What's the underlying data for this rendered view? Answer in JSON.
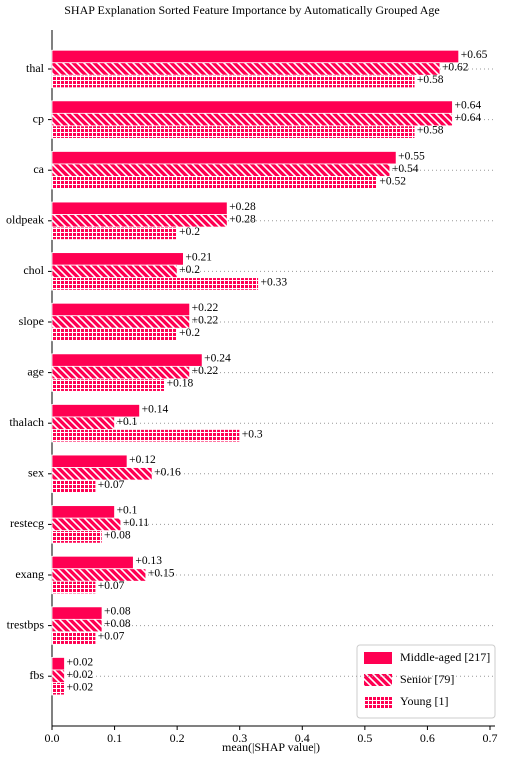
{
  "chart_data": {
    "type": "barh",
    "title": "SHAP Explanation Sorted Feature Importance by Automatically Grouped Age",
    "x_label": "mean(|SHAP value|)",
    "categories": [
      "thal",
      "cp",
      "ca",
      "oldpeak",
      "chol",
      "slope",
      "age",
      "thalach",
      "sex",
      "restecg",
      "exang",
      "trestbps",
      "fbs"
    ],
    "series": [
      {
        "name": "Middle-aged [217]",
        "color": "#ff0052",
        "values": [
          0.65,
          0.64,
          0.55,
          0.28,
          0.21,
          0.22,
          0.24,
          0.14,
          0.12,
          0.1,
          0.13,
          0.08,
          0.02
        ],
        "value_labels": [
          "+0.65",
          "+0.64",
          "+0.55",
          "+0.28",
          "+0.21",
          "+0.22",
          "+0.24",
          "+0.14",
          "+0.12",
          "+0.1",
          "+0.13",
          "+0.08",
          "+0.02"
        ]
      },
      {
        "name": "Senior [79]",
        "color": "#ff0052",
        "values": [
          0.62,
          0.64,
          0.54,
          0.28,
          0.2,
          0.22,
          0.22,
          0.1,
          0.16,
          0.11,
          0.15,
          0.08,
          0.02
        ],
        "value_labels": [
          "+0.62",
          "+0.64",
          "+0.54",
          "+0.28",
          "+0.2",
          "+0.22",
          "+0.22",
          "+0.1",
          "+0.16",
          "+0.11",
          "+0.15",
          "+0.08",
          "+0.02"
        ]
      },
      {
        "name": "Young [1]",
        "color": "#ff0052",
        "values": [
          0.58,
          0.58,
          0.52,
          0.2,
          0.33,
          0.2,
          0.18,
          0.3,
          0.07,
          0.08,
          0.07,
          0.07,
          0.02
        ],
        "value_labels": [
          "+0.58",
          "+0.58",
          "+0.52",
          "+0.2",
          "+0.33",
          "+0.2",
          "+0.18",
          "+0.3",
          "+0.07",
          "+0.08",
          "+0.07",
          "+0.07",
          "+0.02"
        ]
      }
    ],
    "xlim": [
      0,
      0.7
    ],
    "xticks": [
      {
        "value": 0,
        "label": "0.0"
      },
      0.1,
      0.2,
      0.3,
      0.4,
      0.5,
      0.6,
      0.7
    ],
    "legend": "lower right"
  }
}
